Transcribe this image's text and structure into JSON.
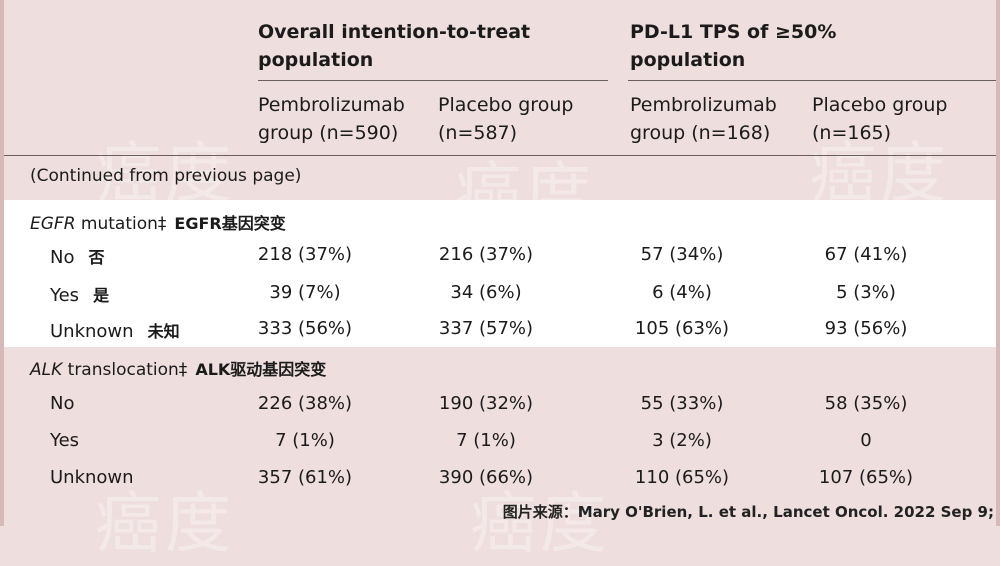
{
  "header": {
    "group1": [
      "Overall intention-to-treat",
      "population"
    ],
    "group2": [
      "PD-L1 TPS of ≥50%",
      "population"
    ],
    "columns": [
      {
        "line1": "Pembrolizumab",
        "line2": "group (n=590)"
      },
      {
        "line1": "Placebo group",
        "line2": "(n=587)"
      },
      {
        "line1": "Pembrolizumab",
        "line2": "group (n=168)"
      },
      {
        "line1": "Placebo group",
        "line2": "(n=165)"
      }
    ]
  },
  "continued": "(Continued from previous page)",
  "sections": [
    {
      "title_italic": "EGFR",
      "title_rest": " mutation‡",
      "title_zh": "EGFR基因突变",
      "rows": [
        {
          "label": "No",
          "zh": "否",
          "values": [
            "218 (37%)",
            "216 (37%)",
            "57 (34%)",
            "67 (41%)"
          ]
        },
        {
          "label": "Yes",
          "zh": "是",
          "values": [
            "39 (7%)",
            "34 (6%)",
            "6 (4%)",
            "5 (3%)"
          ]
        },
        {
          "label": "Unknown",
          "zh": "未知",
          "values": [
            "333 (56%)",
            "337 (57%)",
            "105 (63%)",
            "93 (56%)"
          ]
        }
      ]
    },
    {
      "title_italic": "ALK",
      "title_rest": " translocation‡",
      "title_zh": "ALK驱动基因突变",
      "rows": [
        {
          "label": "No",
          "zh": "",
          "values": [
            "226 (38%)",
            "190 (32%)",
            "55 (33%)",
            "58 (35%)"
          ]
        },
        {
          "label": "Yes",
          "zh": "",
          "values": [
            "7 (1%)",
            "7 (1%)",
            "3 (2%)",
            "0"
          ]
        },
        {
          "label": "Unknown",
          "zh": "",
          "values": [
            "357 (61%)",
            "390 (66%)",
            "110 (65%)",
            "107 (65%)"
          ]
        }
      ]
    }
  ],
  "watermark": "癌度",
  "source": "图片来源：Mary O'Brien, L. et al., Lancet Oncol. 2022 Sep 9;"
}
